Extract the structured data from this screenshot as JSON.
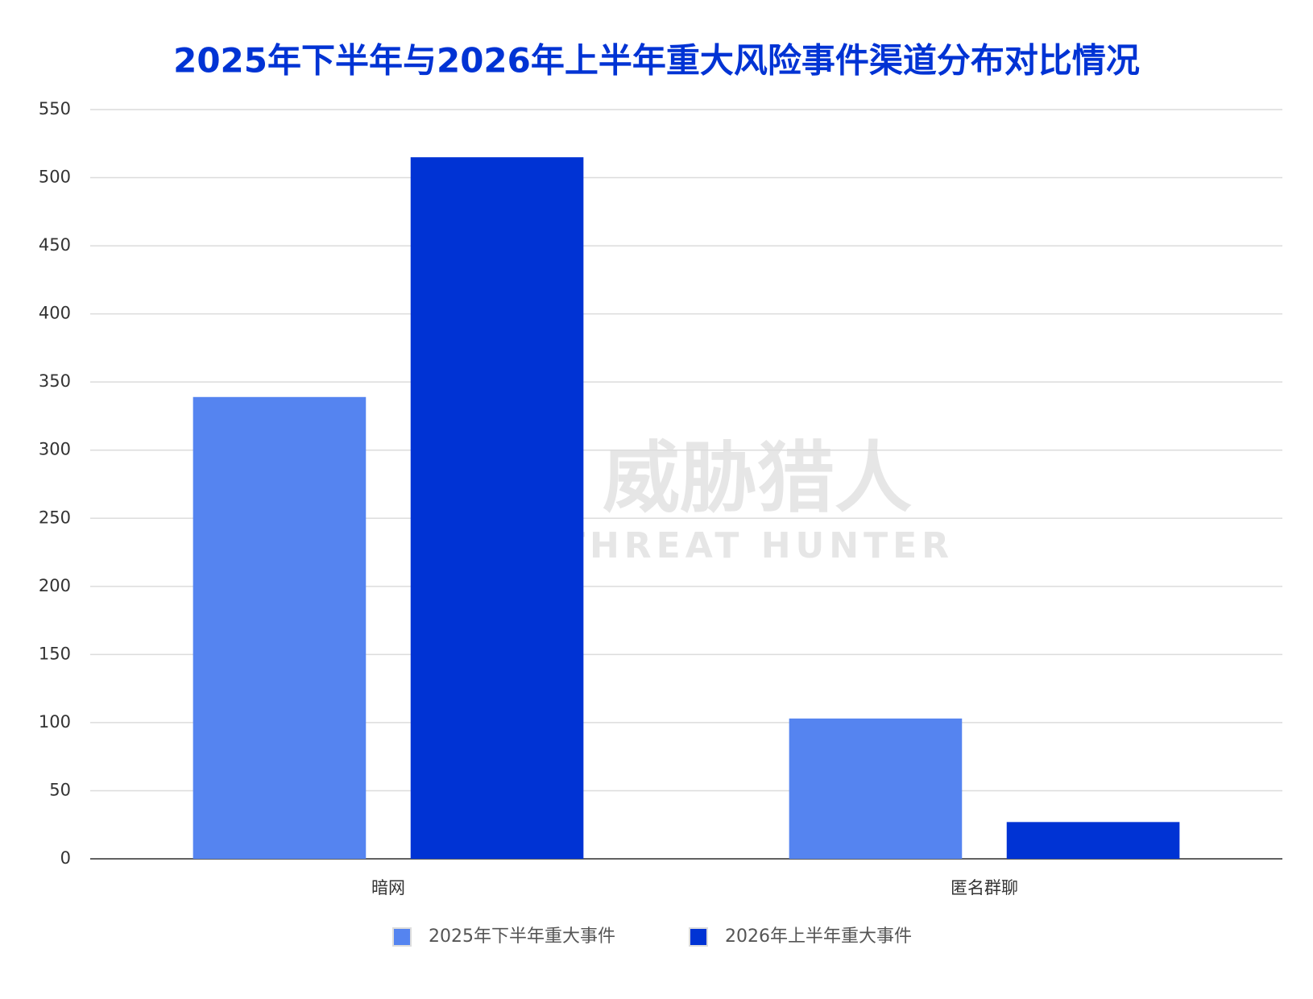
{
  "chart_data": {
    "type": "bar",
    "title": "2025年下半年与2026年上半年重大风险事件渠道分布对比情况",
    "categories": [
      "暗网",
      "匿名群聊"
    ],
    "series": [
      {
        "name": "2025年下半年重大事件",
        "color": "#5584f0",
        "values": [
          339,
          103
        ]
      },
      {
        "name": "2026年上半年重大事件",
        "color": "#0033d4",
        "values": [
          515,
          27
        ]
      }
    ],
    "ylim": [
      0,
      550
    ],
    "yticks": [
      0,
      50,
      100,
      150,
      200,
      250,
      300,
      350,
      400,
      450,
      500,
      550
    ],
    "grid": true,
    "legend": "bottom",
    "watermark": {
      "cn": "威胁猎人",
      "en": "THREAT HUNTER"
    }
  }
}
